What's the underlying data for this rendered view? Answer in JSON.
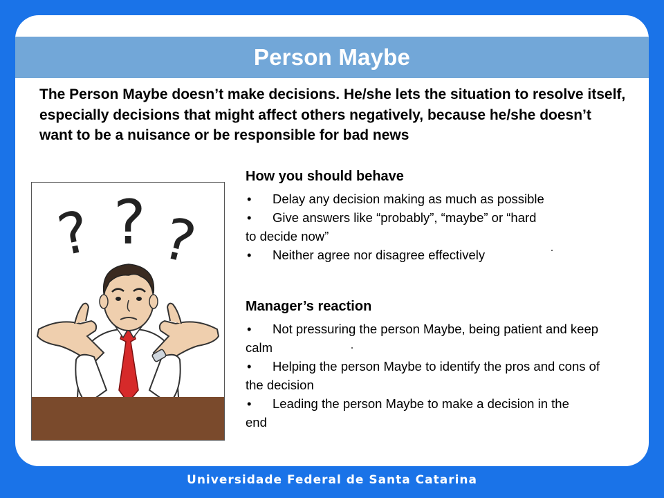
{
  "slide": {
    "title": "Person Maybe",
    "intro": "The Person Maybe doesn’t make decisions. He/she lets the situation to resolve itself, especially decisions that might affect others negatively, because he/she doesn’t want to be a nuisance or be responsible for bad news",
    "behave": {
      "heading": "How you should behave",
      "items": [
        {
          "bullet": "•",
          "text": "Delay any decision making as much as possible"
        },
        {
          "bullet": "•",
          "text": "Give answers like “probably”, “maybe” or “hard to decide now”"
        },
        {
          "bullet": "•",
          "text": "Neither agree nor disagree effectively"
        }
      ]
    },
    "reaction": {
      "heading": "Manager’s reaction",
      "items": [
        {
          "bullet": "•",
          "text": "Not pressuring the person Maybe, being patient and keep calm"
        },
        {
          "bullet": "•",
          "text": "Helping the person Maybe to identify the pros and cons of the decision"
        },
        {
          "bullet": "•",
          "text": "Leading the person Maybe to make a decision in the end"
        }
      ]
    }
  },
  "illustration": {
    "marks": [
      "?",
      "?",
      "?"
    ]
  },
  "footer": {
    "institution": "Universidade Federal de Santa Catarina"
  },
  "colors": {
    "background": "#1a73e8",
    "title_band": "#72a7d8",
    "desk": "#7a4a2c",
    "tie": "#d62a2a"
  }
}
